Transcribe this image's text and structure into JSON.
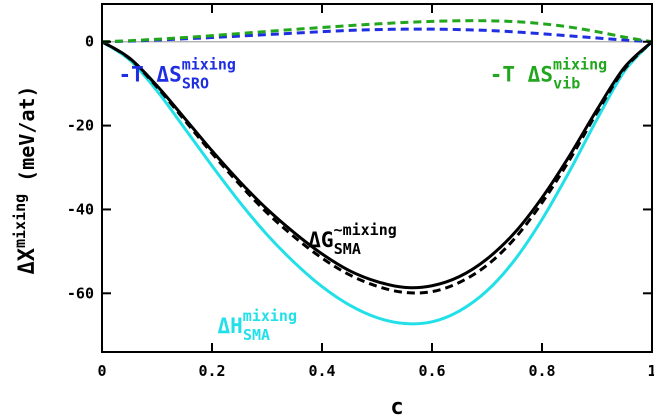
{
  "chart_data": {
    "type": "line",
    "xlabel": "c",
    "ylabel": "ΔX",
    "ylabel_superscript": "mixing",
    "ylabel_unit": "(meV/at)",
    "xlim": [
      0,
      1
    ],
    "ylim": [
      -74,
      9
    ],
    "x_ticks": [
      0,
      0.2,
      0.4,
      0.6,
      0.8,
      1
    ],
    "x_tick_labels": [
      "0",
      "0.2",
      "0.4",
      "0.6",
      "0.8",
      "1"
    ],
    "y_ticks": [
      0,
      -20,
      -40,
      -60
    ],
    "y_tick_labels": [
      "0",
      "-20",
      "-40",
      "-60"
    ],
    "reference_line_y": 0,
    "grid": false,
    "legend": "none",
    "series": [
      {
        "key": "h_sma",
        "color": "#22e0e8",
        "dash": "solid",
        "x": [
          0,
          0.05,
          0.1,
          0.15,
          0.2,
          0.25,
          0.3,
          0.35,
          0.4,
          0.45,
          0.5,
          0.55,
          0.6,
          0.65,
          0.7,
          0.75,
          0.8,
          0.85,
          0.9,
          0.95,
          1
        ],
        "y": [
          0,
          -4.3,
          -11.7,
          -20.6,
          -29.6,
          -38.2,
          -46.0,
          -52.7,
          -58.4,
          -62.8,
          -65.8,
          -67.2,
          -66.8,
          -64.2,
          -59.4,
          -52.1,
          -42.4,
          -30.9,
          -18.5,
          -7.0,
          0
        ]
      },
      {
        "key": "g_sma_tilde",
        "color": "#000000",
        "dash": "dashed",
        "x": [
          0,
          0.05,
          0.1,
          0.15,
          0.2,
          0.25,
          0.3,
          0.35,
          0.4,
          0.45,
          0.5,
          0.55,
          0.6,
          0.65,
          0.7,
          0.75,
          0.8,
          0.85,
          0.9,
          0.95,
          1
        ],
        "y": [
          0,
          -4.0,
          -10.8,
          -18.7,
          -26.6,
          -34.0,
          -40.8,
          -46.6,
          -51.6,
          -55.6,
          -58.3,
          -59.8,
          -59.6,
          -57.4,
          -53.3,
          -47.0,
          -38.4,
          -28.2,
          -16.9,
          -6.5,
          0
        ]
      },
      {
        "key": "g_sma",
        "color": "#000000",
        "dash": "solid",
        "x": [
          0,
          0.05,
          0.1,
          0.15,
          0.2,
          0.25,
          0.3,
          0.35,
          0.4,
          0.45,
          0.5,
          0.55,
          0.6,
          0.65,
          0.7,
          0.75,
          0.8,
          0.85,
          0.9,
          0.95,
          1
        ],
        "y": [
          0,
          -3.9,
          -10.5,
          -18.2,
          -26.0,
          -33.3,
          -39.9,
          -45.6,
          -50.6,
          -54.6,
          -57.2,
          -58.6,
          -58.2,
          -56.0,
          -51.8,
          -45.6,
          -37.2,
          -27.2,
          -16.2,
          -6.1,
          0
        ]
      },
      {
        "key": "ts_sro",
        "color": "#1f2ee0",
        "dash": "dashed",
        "x": [
          0,
          0.05,
          0.1,
          0.15,
          0.2,
          0.25,
          0.3,
          0.35,
          0.4,
          0.45,
          0.5,
          0.55,
          0.6,
          0.65,
          0.7,
          0.75,
          0.8,
          0.85,
          0.9,
          0.95,
          1
        ],
        "y": [
          0,
          0.15,
          0.4,
          0.7,
          1.0,
          1.35,
          1.7,
          2.05,
          2.4,
          2.7,
          2.9,
          3.0,
          3.0,
          2.9,
          2.7,
          2.35,
          1.9,
          1.4,
          0.9,
          0.4,
          0
        ]
      },
      {
        "key": "ts_vib",
        "color": "#22a61e",
        "dash": "dashed",
        "x": [
          0,
          0.05,
          0.1,
          0.15,
          0.2,
          0.25,
          0.3,
          0.35,
          0.4,
          0.45,
          0.5,
          0.55,
          0.6,
          0.65,
          0.7,
          0.75,
          0.8,
          0.85,
          0.9,
          0.95,
          1
        ],
        "y": [
          0,
          0.25,
          0.6,
          1.0,
          1.45,
          1.95,
          2.45,
          2.95,
          3.4,
          3.85,
          4.25,
          4.6,
          4.85,
          5.0,
          5.0,
          4.8,
          4.3,
          3.5,
          2.4,
          1.1,
          0
        ]
      }
    ],
    "annotations": [
      {
        "key": "ts_sro",
        "prefix": "-T ",
        "symbol": "ΔS",
        "sup": "mixing",
        "sub": "SRO",
        "color": "#1f2ee0",
        "at": [
          0.03,
          -9.5
        ]
      },
      {
        "key": "ts_vib",
        "prefix": "-T ",
        "symbol": "ΔS",
        "sup": "mixing",
        "sub": "vib",
        "color": "#22a61e",
        "at": [
          0.705,
          -9.5
        ]
      },
      {
        "key": "g_sma",
        "prefix": "",
        "symbol": "ΔG",
        "sup": "~mixing",
        "sub": "SMA",
        "color": "#000000",
        "at": [
          0.375,
          -49
        ]
      },
      {
        "key": "h_sma",
        "prefix": "",
        "symbol": "ΔH",
        "sup": "mixing",
        "sub": "SMA",
        "color": "#22e0e8",
        "at": [
          0.21,
          -69.5
        ]
      }
    ]
  }
}
